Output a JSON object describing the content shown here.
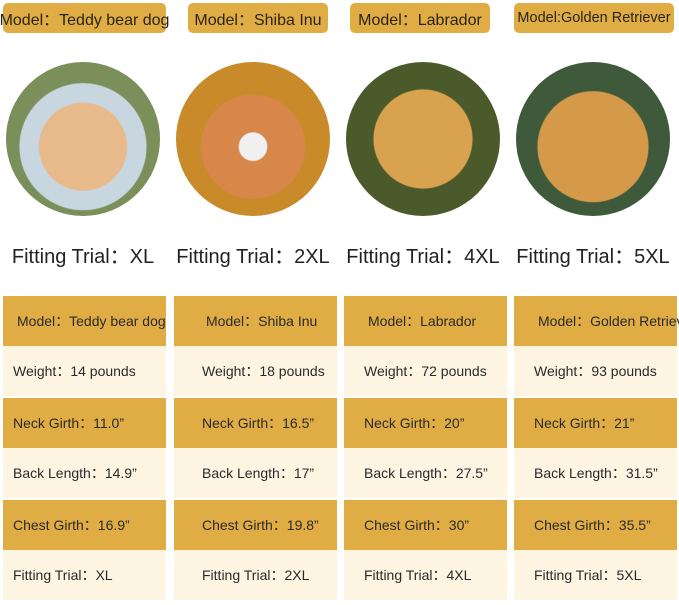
{
  "colors": {
    "gold": "#e0ad45",
    "cream": "#fdf5e2"
  },
  "dogs": [
    {
      "tag": "Model：Teddy bear dog",
      "trial": "Fitting Trial：XL",
      "image": "poodle-photo",
      "rows": [
        "Model：Teddy bear dog",
        "Weight：14 pounds",
        "Neck Girth：11.0”",
        "Back Length：14.9”",
        "Chest Girth：16.9”",
        "Fitting Trial：XL"
      ]
    },
    {
      "tag": "Model：Shiba Inu",
      "trial": "Fitting Trial：2XL",
      "image": "shiba-inu-photo",
      "rows": [
        "Model：Shiba Inu",
        "Weight：18 pounds",
        "Neck Girth：16.5”",
        "Back Length：17”",
        "Chest Girth：19.8”",
        "Fitting Trial：2XL"
      ]
    },
    {
      "tag": "Model：Labrador",
      "trial": "Fitting Trial：4XL",
      "image": "labrador-photo",
      "rows": [
        "Model：Labrador",
        "Weight：72 pounds",
        "Neck Girth：20”",
        "Back Length：27.5”",
        "Chest Girth：30”",
        "Fitting Trial：4XL"
      ]
    },
    {
      "tag": "Model:Golden Retriever",
      "trial": "Fitting Trial：5XL",
      "image": "golden-retriever-photo",
      "rows": [
        "Model：Golden Retriever",
        "Weight：93 pounds",
        "Neck Girth：21”",
        "Back Length：31.5”",
        "Chest Girth：35.5”",
        "Fitting Trial：5XL"
      ]
    }
  ]
}
